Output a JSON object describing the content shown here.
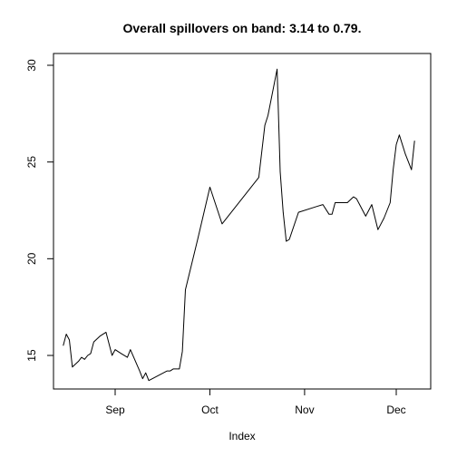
{
  "chart_data": {
    "type": "line",
    "title": "Overall spillovers on band: 3.14 to 0.79.",
    "xlabel": "Index",
    "ylabel": "",
    "x_ticks": [
      "Sep",
      "Oct",
      "Nov",
      "Dec"
    ],
    "x_tick_positions": [
      33,
      64,
      95,
      125
    ],
    "y_ticks": [
      15,
      20,
      25,
      30
    ],
    "xlim": [
      16,
      136
    ],
    "ylim": [
      13,
      31
    ],
    "grid": false,
    "series": [
      {
        "color": "#000000",
        "points": [
          [
            16,
            15.5
          ],
          [
            17,
            16.1
          ],
          [
            18,
            15.8
          ],
          [
            19,
            14.4
          ],
          [
            21,
            14.7
          ],
          [
            22,
            14.9
          ],
          [
            23,
            14.8
          ],
          [
            24,
            15.0
          ],
          [
            25,
            15.1
          ],
          [
            26,
            15.7
          ],
          [
            28,
            16.0
          ],
          [
            30,
            16.2
          ],
          [
            32,
            15.0
          ],
          [
            33,
            15.3
          ],
          [
            35,
            15.1
          ],
          [
            37,
            14.9
          ],
          [
            38,
            15.3
          ],
          [
            41,
            14.2
          ],
          [
            42,
            13.8
          ],
          [
            43,
            14.1
          ],
          [
            44,
            13.7
          ],
          [
            50,
            14.2
          ],
          [
            51,
            14.2
          ],
          [
            52,
            14.3
          ],
          [
            54,
            14.3
          ],
          [
            55,
            15.2
          ],
          [
            56,
            18.4
          ],
          [
            60,
            21.0
          ],
          [
            64,
            23.7
          ],
          [
            68,
            21.8
          ],
          [
            80,
            24.2
          ],
          [
            82,
            26.9
          ],
          [
            83,
            27.4
          ],
          [
            86,
            29.8
          ],
          [
            87,
            24.5
          ],
          [
            88,
            22.4
          ],
          [
            89,
            20.9
          ],
          [
            90,
            21.0
          ],
          [
            93,
            22.4
          ],
          [
            99,
            22.7
          ],
          [
            101,
            22.8
          ],
          [
            103,
            22.3
          ],
          [
            104,
            22.3
          ],
          [
            105,
            22.9
          ],
          [
            106,
            22.9
          ],
          [
            109,
            22.9
          ],
          [
            111,
            23.2
          ],
          [
            112,
            23.1
          ],
          [
            113,
            22.8
          ],
          [
            115,
            22.2
          ],
          [
            117,
            22.8
          ],
          [
            119,
            21.5
          ],
          [
            121,
            22.1
          ],
          [
            122,
            22.5
          ],
          [
            123,
            22.9
          ],
          [
            124,
            24.6
          ],
          [
            125,
            25.9
          ],
          [
            126,
            26.4
          ],
          [
            128,
            25.4
          ],
          [
            130,
            24.6
          ],
          [
            131,
            26.1
          ]
        ]
      }
    ]
  }
}
